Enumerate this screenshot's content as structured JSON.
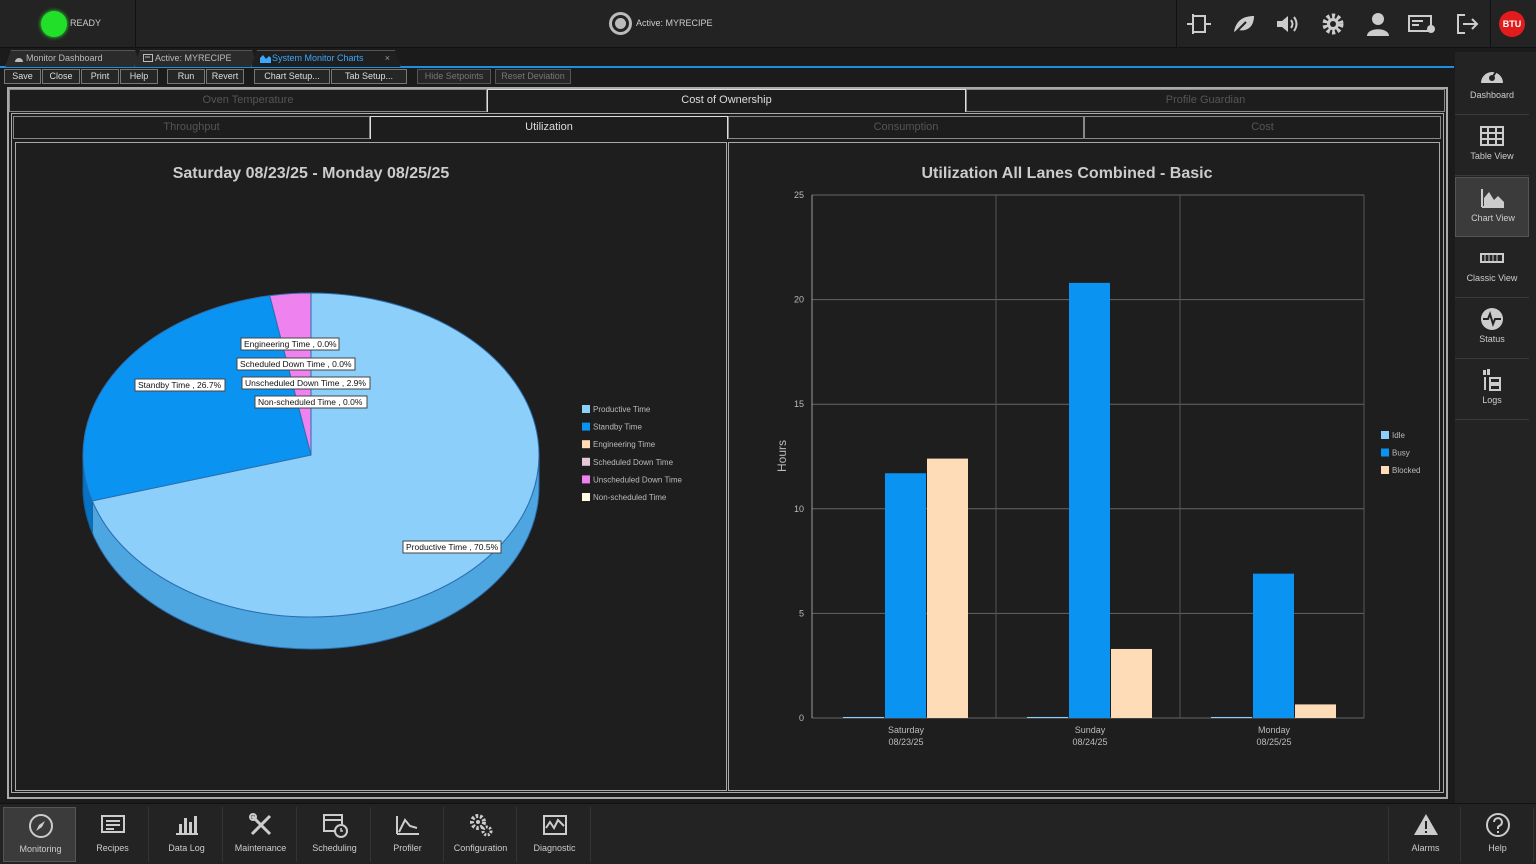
{
  "topbar": {
    "status": "READY",
    "active_recipe": "Active: MYRECIPE",
    "logo": "BTU",
    "icons": [
      "oven-icon",
      "leaf-icon",
      "speaker-icon",
      "gear-icon",
      "user-icon",
      "card-icon",
      "logout-icon"
    ]
  },
  "doc_tabs": [
    {
      "label": "Monitor Dashboard",
      "icon": "dashboard-icon"
    },
    {
      "label": "Active: MYRECIPE",
      "icon": "recipe-icon"
    },
    {
      "label": "System Monitor Charts",
      "icon": "chart-icon",
      "close": "×"
    }
  ],
  "toolbar": {
    "save": "Save",
    "close": "Close",
    "print": "Print",
    "help": "Help",
    "run": "Run",
    "revert": "Revert",
    "chart_setup": "Chart Setup...",
    "tab_setup": "Tab Setup...",
    "hide_setpoints": "Hide Setpoints",
    "reset_deviation": "Reset Deviation"
  },
  "tabs_top": [
    "Oven Temperature",
    "Cost of Ownership",
    "Profile Guardian"
  ],
  "tabs_sub": [
    "Throughput",
    "Utilization",
    "Consumption",
    "Cost"
  ],
  "pie": {
    "title": "Saturday  08/23/25 - Monday  08/25/25",
    "labels": {
      "engineering": "Engineering Time , 0.0%",
      "scheduled": "Scheduled Down Time , 0.0%",
      "unscheduled": "Unscheduled Down Time , 2.9%",
      "nonscheduled": "Non-scheduled Time , 0.0%",
      "standby": "Standby Time , 26.7%",
      "productive": "Productive Time , 70.5%"
    },
    "legend": [
      "Productive Time",
      "Standby Time",
      "Engineering Time",
      "Scheduled Down Time",
      "Unscheduled Down Time",
      "Non-scheduled Time"
    ]
  },
  "chart_data": [
    {
      "type": "pie",
      "title": "Saturday  08/23/25 - Monday  08/25/25",
      "slices": [
        {
          "name": "Productive Time",
          "value": 70.5,
          "color": "#8ccffa"
        },
        {
          "name": "Standby Time",
          "value": 26.7,
          "color": "#0a93f0"
        },
        {
          "name": "Engineering Time",
          "value": 0.0,
          "color": "#ffdcb8"
        },
        {
          "name": "Scheduled Down Time",
          "value": 0.0,
          "color": "#e8c8d8"
        },
        {
          "name": "Unscheduled Down Time",
          "value": 2.9,
          "color": "#ee82ee"
        },
        {
          "name": "Non-scheduled Time",
          "value": 0.0,
          "color": "#ffffe0"
        }
      ]
    },
    {
      "type": "bar",
      "title": "Utilization All Lanes Combined - Basic",
      "ylabel": "Hours",
      "ylim": [
        0,
        25
      ],
      "yticks": [
        0,
        5,
        10,
        15,
        20,
        25
      ],
      "categories": [
        [
          "Saturday",
          "08/23/25"
        ],
        [
          "Sunday",
          "08/24/25"
        ],
        [
          "Monday",
          "08/25/25"
        ]
      ],
      "series": [
        {
          "name": "Idle",
          "values": [
            0.05,
            0.05,
            0.05
          ],
          "color": "#8ccffa"
        },
        {
          "name": "Busy",
          "values": [
            11.7,
            20.8,
            6.9
          ],
          "color": "#0a93f0"
        },
        {
          "name": "Blocked",
          "values": [
            12.4,
            3.3,
            0.65
          ],
          "color": "#ffdcb8"
        }
      ],
      "legend_position": "right"
    }
  ],
  "sidebar": [
    "Dashboard",
    "Table View",
    "Chart View",
    "Classic View",
    "Status",
    "Logs"
  ],
  "bottombar": [
    "Monitoring",
    "Recipes",
    "Data Log",
    "Maintenance",
    "Scheduling",
    "Profiler",
    "Configuration",
    "Diagnostic"
  ],
  "bottom_right": [
    "Alarms",
    "Help"
  ]
}
